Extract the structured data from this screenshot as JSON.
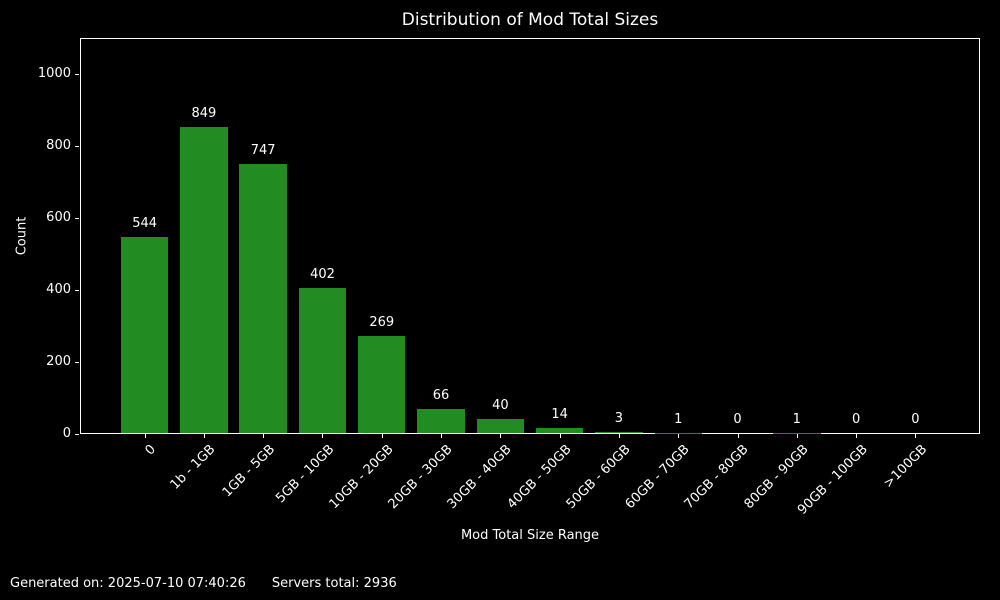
{
  "figure": {
    "footer": {
      "generated": "Generated on: 2025-07-10 07:40:26",
      "servers_total": "Servers total: 2936"
    }
  },
  "chart_data": {
    "type": "bar",
    "title": "Distribution of Mod Total Sizes",
    "xlabel": "Mod Total Size Range",
    "ylabel": "Count",
    "categories": [
      "0",
      "1b - 1GB",
      "1GB - 5GB",
      "5GB - 10GB",
      "10GB - 20GB",
      "20GB - 30GB",
      "30GB - 40GB",
      "40GB - 50GB",
      "50GB - 60GB",
      "60GB - 70GB",
      "70GB - 80GB",
      "80GB - 90GB",
      "90GB - 100GB",
      ">100GB"
    ],
    "values": [
      544,
      849,
      747,
      402,
      269,
      66,
      40,
      14,
      3,
      1,
      0,
      1,
      0,
      0
    ],
    "ylim": [
      0,
      1100
    ],
    "y_ticks": [
      0,
      200,
      400,
      600,
      800,
      1000
    ],
    "bar_color": "#228B22",
    "background_color": "#000000",
    "text_color": "#ffffff",
    "grid": false,
    "legend": null,
    "bar_value_labels": true
  }
}
